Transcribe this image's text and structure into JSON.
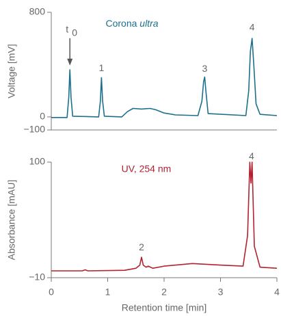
{
  "chart_data": [
    {
      "type": "line",
      "ylabel": "Voltage [mV]",
      "xlim": [
        0,
        4
      ],
      "ylim": [
        -100,
        800
      ],
      "yticks": [
        800,
        0,
        {
          "value": -100,
          "label": "−100"
        }
      ],
      "series": [
        {
          "name": "Corona ultra",
          "color": "#1b6f8c",
          "x": [
            0,
            0.28,
            0.31,
            0.33,
            0.35,
            0.38,
            0.84,
            0.87,
            0.89,
            0.91,
            0.94,
            1.25,
            1.35,
            1.45,
            1.6,
            1.75,
            1.85,
            2.0,
            2.2,
            2.6,
            2.67,
            2.7,
            2.72,
            2.74,
            2.78,
            3.45,
            3.5,
            3.53,
            3.56,
            3.59,
            3.63,
            3.7,
            4.0
          ],
          "values": [
            -5,
            -5,
            150,
            360,
            150,
            5,
            0,
            120,
            300,
            120,
            5,
            0,
            40,
            65,
            60,
            65,
            55,
            30,
            15,
            10,
            120,
            270,
            305,
            200,
            25,
            10,
            200,
            500,
            600,
            400,
            100,
            20,
            10
          ]
        }
      ],
      "annotations": [
        {
          "text": "t",
          "subscript": "0",
          "x": 0.33,
          "y": 665,
          "arrow": true
        },
        {
          "text": "1",
          "x": 0.89,
          "y": 370
        },
        {
          "text": "3",
          "x": 2.72,
          "y": 365
        },
        {
          "text": "4",
          "x": 3.56,
          "y": 680
        }
      ]
    },
    {
      "type": "line",
      "ylabel": "Absorbance [mAU]",
      "xlabel": "Retention time [min]",
      "xlim": [
        0,
        4
      ],
      "ylim": [
        -10,
        100
      ],
      "xticks": [
        0,
        1,
        2,
        3,
        4
      ],
      "yticks": [
        100,
        {
          "value": -10,
          "label": "−10"
        }
      ],
      "series": [
        {
          "name": "UV, 254 nm",
          "color": "#b3202f",
          "x": [
            0,
            0.55,
            0.6,
            0.65,
            1.3,
            1.5,
            1.57,
            1.6,
            1.63,
            1.68,
            1.72,
            1.8,
            2.0,
            2.5,
            3.0,
            3.4,
            3.48,
            3.52,
            3.54,
            3.56,
            3.6,
            3.7,
            4.0
          ],
          "values": [
            -3.5,
            -3.5,
            -2.5,
            -3.5,
            -3,
            -1,
            2,
            9.5,
            2,
            0,
            1,
            -1,
            1,
            3.5,
            2,
            1,
            30,
            100,
            80,
            100,
            20,
            0,
            -1
          ]
        }
      ],
      "annotations": [
        {
          "text": "2",
          "x": 1.6,
          "y": 18.6
        },
        {
          "text": "4",
          "x": 3.55,
          "y": 105
        }
      ]
    }
  ]
}
